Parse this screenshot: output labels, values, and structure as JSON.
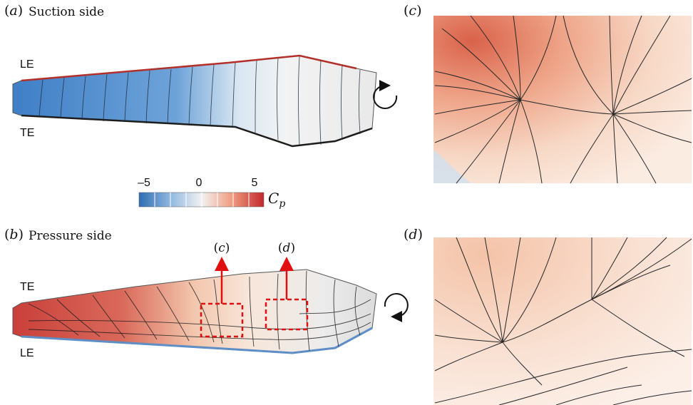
{
  "panels": {
    "a": {
      "tag": "a",
      "title": "Suction side",
      "top_edge": "LE",
      "bottom_edge": "TE"
    },
    "b": {
      "tag": "b",
      "title": "Pressure side",
      "top_edge": "TE",
      "bottom_edge": "LE"
    },
    "c": {
      "tag": "c"
    },
    "d": {
      "tag": "d"
    }
  },
  "colorbar": {
    "variable": "C",
    "variable_sub": "p",
    "ticks": [
      "–5",
      "0",
      "5"
    ],
    "colors": {
      "low": "#2f6db3",
      "mid": "#f2f2f2",
      "high": "#c0282f"
    }
  },
  "callouts": [
    {
      "id": "callout-c",
      "tag": "c"
    },
    {
      "id": "callout-d",
      "tag": "d"
    }
  ],
  "accent_color": "#e01010"
}
